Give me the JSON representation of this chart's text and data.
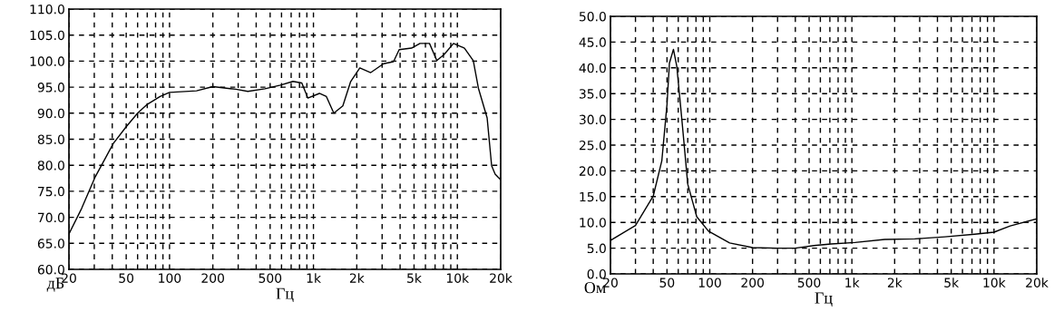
{
  "chart_data": [
    {
      "type": "line",
      "xlabel": "Гц",
      "ylabel": "дБ",
      "log": "x",
      "grid": true,
      "line_style": "solid",
      "marker": "none",
      "series": [
        {
          "color": "#000000",
          "x": [
            20,
            24.5,
            30.5,
            40.7,
            50,
            60,
            70,
            86,
            100,
            154,
            200,
            289,
            350,
            460,
            590,
            720,
            830,
            915,
            1100,
            1230,
            1385,
            1600,
            1815,
            2100,
            2500,
            3070,
            3600,
            3940,
            4800,
            5500,
            6400,
            7200,
            8100,
            9400,
            11200,
            12900,
            14000,
            16100,
            17300,
            18300,
            20000
          ],
          "values": [
            66.8,
            71.7,
            77.8,
            84.2,
            87.4,
            90.0,
            91.7,
            93.2,
            94.0,
            94.3,
            95.1,
            94.6,
            94.2,
            94.7,
            95.4,
            96.1,
            95.8,
            92.9,
            93.8,
            93.2,
            90.0,
            91.4,
            96.1,
            98.7,
            97.8,
            99.5,
            99.9,
            102.2,
            102.5,
            103.4,
            103.4,
            100.1,
            101.3,
            103.4,
            102.5,
            100.1,
            94.8,
            89.1,
            79.9,
            78.3,
            77.2
          ]
        }
      ],
      "xlim": [
        20,
        20000
      ],
      "ylim": [
        60,
        110
      ],
      "xticks": [
        20,
        {
          "value": 30,
          "label": null
        },
        {
          "value": 40,
          "label": null
        },
        50,
        {
          "value": 60,
          "label": null
        },
        {
          "value": 70,
          "label": null
        },
        {
          "value": 80,
          "label": null
        },
        {
          "value": 90,
          "label": null
        },
        100,
        200,
        {
          "value": 300,
          "label": null
        },
        {
          "value": 400,
          "label": null
        },
        500,
        {
          "value": 600,
          "label": null
        },
        {
          "value": 700,
          "label": null
        },
        {
          "value": 800,
          "label": null
        },
        {
          "value": 900,
          "label": null
        },
        {
          "value": 1000,
          "label": "1k"
        },
        {
          "value": 2000,
          "label": "2k"
        },
        {
          "value": 3000,
          "label": null
        },
        {
          "value": 4000,
          "label": null
        },
        {
          "value": 5000,
          "label": "5k"
        },
        {
          "value": 6000,
          "label": null
        },
        {
          "value": 7000,
          "label": null
        },
        {
          "value": 8000,
          "label": null
        },
        {
          "value": 9000,
          "label": null
        },
        {
          "value": 10000,
          "label": "10k"
        },
        {
          "value": 20000,
          "label": "20k"
        }
      ],
      "yticks": [
        {
          "value": 60,
          "label": "60.0"
        },
        {
          "value": 65,
          "label": "65.0"
        },
        {
          "value": 70,
          "label": "70.0"
        },
        {
          "value": 75,
          "label": "75.0"
        },
        {
          "value": 80,
          "label": "80.0"
        },
        {
          "value": 85,
          "label": "85.0"
        },
        {
          "value": 90,
          "label": "90.0"
        },
        {
          "value": 95,
          "label": "95.0"
        },
        {
          "value": 100,
          "label": "100.0"
        },
        {
          "value": 105,
          "label": "105.0"
        },
        {
          "value": 110,
          "label": "110.0"
        }
      ]
    },
    {
      "type": "line",
      "xlabel": "Гц",
      "ylabel": "Ом",
      "log": "x",
      "grid": true,
      "line_style": "solid",
      "marker": "none",
      "series": [
        {
          "color": "#000000",
          "x": [
            20,
            30,
            40,
            46,
            50,
            52,
            55.5,
            58.6,
            63.6,
            70,
            81,
            98,
            138,
            200,
            300,
            398,
            540,
            712,
            1050,
            1700,
            2770,
            4500,
            7300,
            10000,
            13000,
            20000
          ],
          "values": [
            6.5,
            9.4,
            15.1,
            22.0,
            32.9,
            40.9,
            43.6,
            40.3,
            30.0,
            17.4,
            11.1,
            8.3,
            6.0,
            5.1,
            5.0,
            5.0,
            5.5,
            5.8,
            6.1,
            6.7,
            6.8,
            7.2,
            7.7,
            8.1,
            9.3,
            10.7
          ]
        }
      ],
      "xlim": [
        20,
        20000
      ],
      "ylim": [
        0,
        50
      ],
      "xticks": [
        20,
        {
          "value": 30,
          "label": null
        },
        {
          "value": 40,
          "label": null
        },
        50,
        {
          "value": 60,
          "label": null
        },
        {
          "value": 70,
          "label": null
        },
        {
          "value": 80,
          "label": null
        },
        {
          "value": 90,
          "label": null
        },
        100,
        200,
        {
          "value": 300,
          "label": null
        },
        {
          "value": 400,
          "label": null
        },
        500,
        {
          "value": 600,
          "label": null
        },
        {
          "value": 700,
          "label": null
        },
        {
          "value": 800,
          "label": null
        },
        {
          "value": 900,
          "label": null
        },
        {
          "value": 1000,
          "label": "1k"
        },
        {
          "value": 2000,
          "label": "2k"
        },
        {
          "value": 3000,
          "label": null
        },
        {
          "value": 4000,
          "label": null
        },
        {
          "value": 5000,
          "label": "5k"
        },
        {
          "value": 6000,
          "label": null
        },
        {
          "value": 7000,
          "label": null
        },
        {
          "value": 8000,
          "label": null
        },
        {
          "value": 9000,
          "label": null
        },
        {
          "value": 10000,
          "label": "10k"
        },
        {
          "value": 20000,
          "label": "20k"
        }
      ],
      "yticks": [
        {
          "value": 0,
          "label": "0.0"
        },
        {
          "value": 5,
          "label": "5.0"
        },
        {
          "value": 10,
          "label": "10.0"
        },
        {
          "value": 15,
          "label": "15.0"
        },
        {
          "value": 20,
          "label": "20.0"
        },
        {
          "value": 25,
          "label": "25.0"
        },
        {
          "value": 30,
          "label": "30.0"
        },
        {
          "value": 35,
          "label": "35.0"
        },
        {
          "value": 40,
          "label": "40.0"
        },
        {
          "value": 45,
          "label": "45.0"
        },
        {
          "value": 50,
          "label": "50.0"
        }
      ]
    }
  ]
}
